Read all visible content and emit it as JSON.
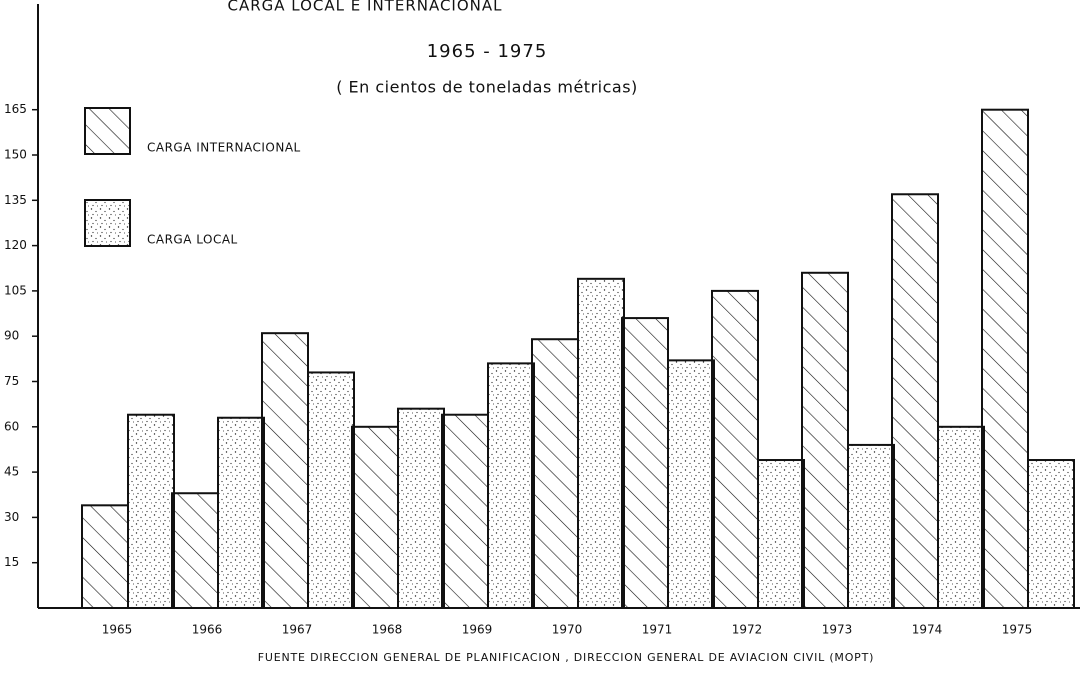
{
  "chart_data": {
    "type": "bar",
    "title": "CARGA LOCAL E INTERNACIONAL",
    "subtitle": "1965 - 1975",
    "units": "( En cientos de toneladas métricas)",
    "source": "FUENTE DIRECCION GENERAL DE PLANIFICACION , DIRECCION GENERAL DE AVIACION CIVIL (MOPT)",
    "categories": [
      "1965",
      "1966",
      "1967",
      "1968",
      "1969",
      "1970",
      "1971",
      "1972",
      "1973",
      "1974",
      "1975"
    ],
    "series": [
      {
        "name": "CARGA INTERNACIONAL",
        "color": "#111111",
        "pattern": "hatch",
        "values": [
          34,
          38,
          91,
          60,
          64,
          89,
          96,
          105,
          111,
          137,
          165
        ]
      },
      {
        "name": "CARGA LOCAL",
        "color": "#111111",
        "pattern": "dots",
        "values": [
          64,
          63,
          78,
          66,
          81,
          109,
          82,
          49,
          54,
          60,
          49
        ]
      }
    ],
    "ylim": [
      0,
      200
    ],
    "yticks": [
      15,
      30,
      45,
      60,
      75,
      90,
      105,
      120,
      135,
      150,
      165
    ]
  }
}
